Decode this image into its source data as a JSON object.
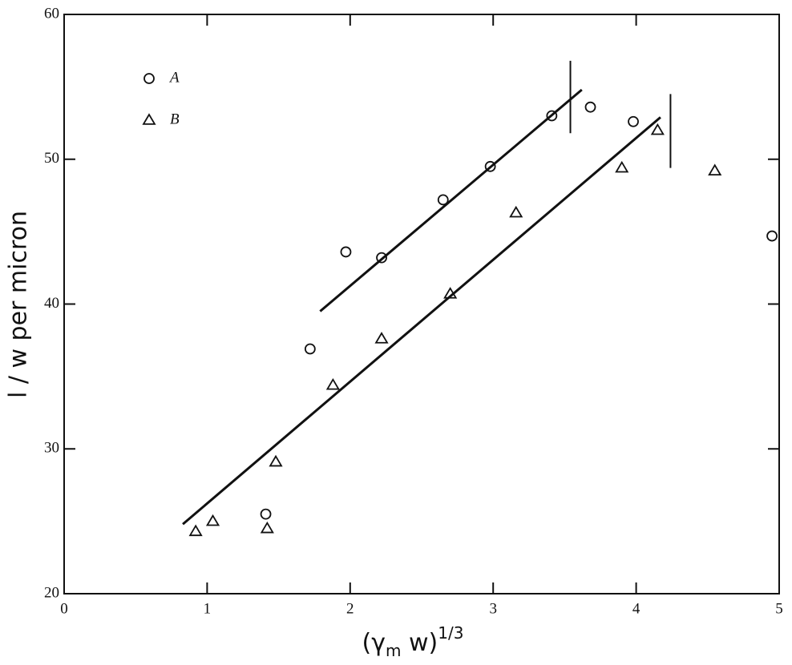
{
  "chart_data": {
    "type": "scatter",
    "xlabel": {
      "parts": [
        "(γ",
        "m",
        " w)",
        "1/3"
      ]
    },
    "ylabel": "l / w per micron",
    "xlim": [
      0,
      5
    ],
    "xticks": [
      0,
      1,
      2,
      3,
      4,
      5
    ],
    "ylim": [
      20,
      60
    ],
    "yticks": [
      20,
      30,
      40,
      50,
      60
    ],
    "grid": false,
    "legend": "upper left",
    "series": [
      {
        "name": "A",
        "marker": "circle",
        "color": "#111111",
        "x": [
          1.41,
          1.72,
          1.97,
          2.22,
          2.65,
          2.98,
          3.41,
          3.68,
          3.98,
          4.95
        ],
        "values": [
          25.5,
          36.9,
          43.6,
          43.2,
          47.2,
          49.5,
          53.0,
          53.6,
          52.6,
          44.7
        ],
        "fit": {
          "x": [
            1.79,
            3.62
          ],
          "y": [
            39.5,
            54.8
          ]
        },
        "limit": {
          "x": 3.54,
          "y": [
            51.8,
            56.8
          ]
        }
      },
      {
        "name": "B",
        "marker": "triangle",
        "color": "#111111",
        "x": [
          0.92,
          1.04,
          1.42,
          1.48,
          1.88,
          2.22,
          2.7,
          3.16,
          3.9,
          4.15,
          4.55
        ],
        "values": [
          24.3,
          25.0,
          24.5,
          29.1,
          34.4,
          37.6,
          40.7,
          46.3,
          49.4,
          52.0,
          49.2
        ],
        "fit": {
          "x": [
            0.83,
            4.17
          ],
          "y": [
            24.8,
            52.9
          ]
        },
        "limit": {
          "x": 4.24,
          "y": [
            49.4,
            54.5
          ]
        }
      }
    ]
  }
}
